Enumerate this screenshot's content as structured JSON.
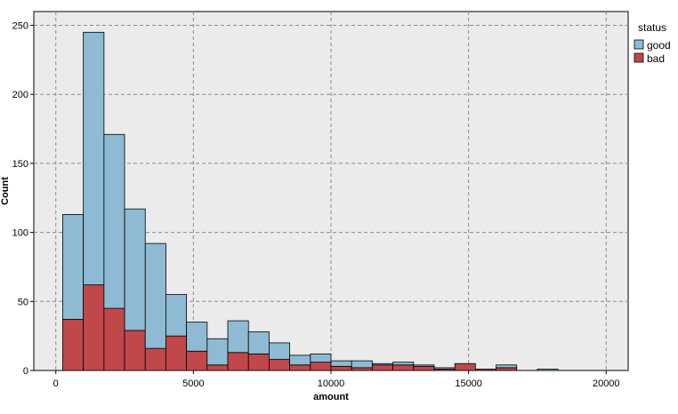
{
  "chart_data": {
    "type": "bar",
    "subtype": "stacked-histogram",
    "xlabel": "amount",
    "ylabel": "Count",
    "xlim": [
      -800,
      20800
    ],
    "ylim": [
      0,
      260
    ],
    "xticks": [
      0,
      5000,
      10000,
      15000,
      20000
    ],
    "yticks": [
      0,
      50,
      100,
      150,
      200,
      250
    ],
    "grid": true,
    "legend_title": "status",
    "legend_position": "right",
    "bin_edges": [
      250,
      1000,
      1750,
      2500,
      3250,
      4000,
      4750,
      5500,
      6250,
      7000,
      7750,
      8500,
      9250,
      10000,
      10750,
      11500,
      12250,
      13000,
      13750,
      14500,
      15250,
      16000,
      16750,
      17500,
      18250
    ],
    "series": [
      {
        "name": "bad",
        "color": "#c0484b",
        "values": [
          37,
          62,
          45,
          29,
          16,
          25,
          14,
          4,
          13,
          12,
          8,
          4,
          6,
          3,
          2,
          4,
          4,
          3,
          1,
          5,
          1,
          2,
          0,
          0
        ]
      },
      {
        "name": "good",
        "color": "#8ebbd3",
        "values": [
          76,
          183,
          126,
          88,
          76,
          30,
          21,
          19,
          23,
          16,
          12,
          7,
          6,
          4,
          5,
          1,
          2,
          1,
          1,
          0,
          0,
          2,
          0,
          1
        ]
      }
    ]
  }
}
